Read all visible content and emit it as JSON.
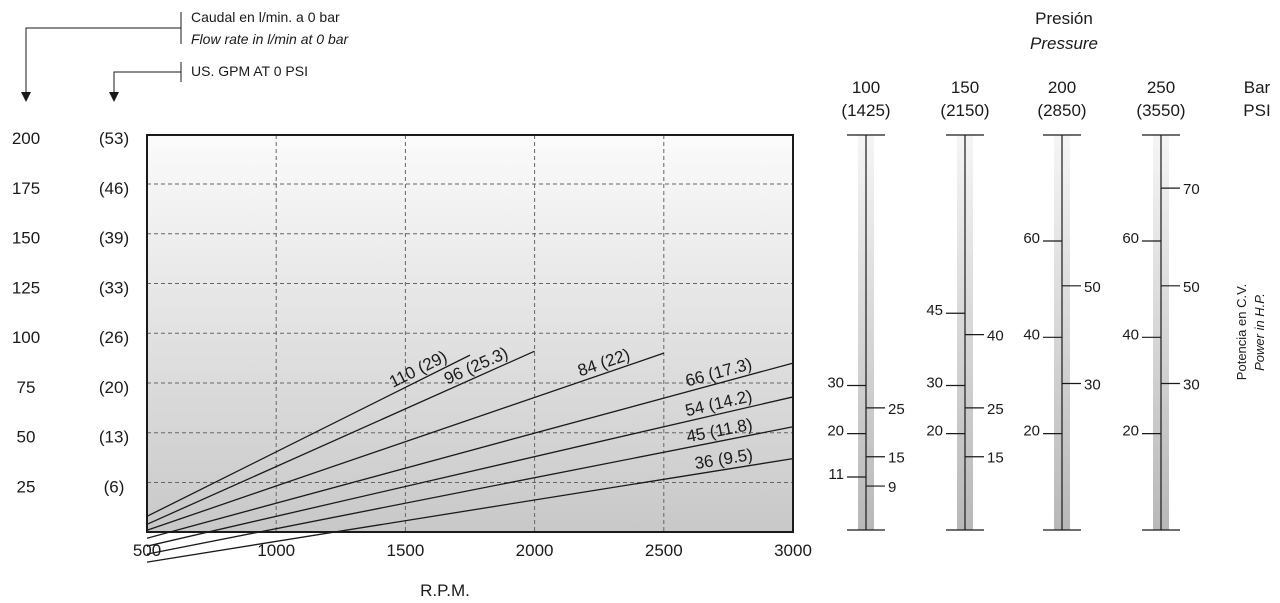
{
  "chart_data": {
    "type": "line",
    "xlabel": "R.P.M.",
    "x_ticks": [
      500,
      1000,
      1500,
      2000,
      2500,
      3000
    ],
    "xlim": [
      500,
      3000
    ],
    "ylim": [
      0,
      250
    ],
    "grid": true,
    "flow_header": {
      "line1": "Caudal en l/min. a 0 bar",
      "line2": "Flow rate in l/min at 0 bar",
      "gpm": "US. GPM AT 0 PSI"
    },
    "y_ticks": [
      {
        "lpm": 200,
        "lpm_label": "200",
        "gpm_label": "(53)"
      },
      {
        "lpm": 175,
        "lpm_label": "175",
        "gpm_label": "(46)"
      },
      {
        "lpm": 150,
        "lpm_label": "150",
        "gpm_label": "(39)"
      },
      {
        "lpm": 125,
        "lpm_label": "125",
        "gpm_label": "(33)"
      },
      {
        "lpm": 100,
        "lpm_label": "100",
        "gpm_label": "(26)"
      },
      {
        "lpm": 75,
        "lpm_label": "75",
        "gpm_label": "(20)"
      },
      {
        "lpm": 50,
        "lpm_label": "50",
        "gpm_label": "(13)"
      },
      {
        "lpm": 25,
        "lpm_label": "25",
        "gpm_label": "(6)"
      }
    ],
    "series": [
      {
        "name": "110 (29)",
        "x": [
          500,
          1750
        ],
        "y": [
          33,
          114
        ]
      },
      {
        "name": "96 (25.3)",
        "x": [
          500,
          2000
        ],
        "y": [
          29,
          116
        ]
      },
      {
        "name": "84 (22)",
        "x": [
          500,
          2500
        ],
        "y": [
          26,
          115
        ]
      },
      {
        "name": "66 (17.3)",
        "x": [
          500,
          3000
        ],
        "y": [
          22,
          110
        ]
      },
      {
        "name": "54 (14.2)",
        "x": [
          500,
          3000
        ],
        "y": [
          18,
          93
        ]
      },
      {
        "name": "45 (11.8)",
        "x": [
          500,
          3000
        ],
        "y": [
          14,
          78
        ]
      },
      {
        "name": "36 (9.5)",
        "x": [
          500,
          3000
        ],
        "y": [
          10,
          62
        ]
      }
    ],
    "pressure_header": {
      "line1": "Presión",
      "line2": "Pressure"
    },
    "unit_labels": {
      "bar": "Bar",
      "psi": "PSI"
    },
    "power_label": {
      "line1": "Potencia en C.V.",
      "line2": "Power in H.P."
    },
    "pressure_scales": [
      {
        "bar": "100",
        "psi": "(1425)",
        "cv_ticks": [
          {
            "v": 30,
            "label": "30"
          },
          {
            "v": 20,
            "label": "20"
          },
          {
            "v": 11,
            "label": "11"
          }
        ],
        "hp_ticks": [
          {
            "v": 25,
            "label": "25"
          },
          {
            "v": 15,
            "label": "15"
          },
          {
            "v": 9,
            "label": "9"
          }
        ]
      },
      {
        "bar": "150",
        "psi": "(2150)",
        "cv_ticks": [
          {
            "v": 45,
            "label": "45"
          },
          {
            "v": 30,
            "label": "30"
          },
          {
            "v": 20,
            "label": "20"
          }
        ],
        "hp_ticks": [
          {
            "v": 40,
            "label": "40"
          },
          {
            "v": 25,
            "label": "25"
          },
          {
            "v": 15,
            "label": "15"
          }
        ]
      },
      {
        "bar": "200",
        "psi": "(2850)",
        "cv_ticks": [
          {
            "v": 60,
            "label": "60"
          },
          {
            "v": 40,
            "label": "40"
          },
          {
            "v": 20,
            "label": "20"
          }
        ],
        "hp_ticks": [
          {
            "v": 50,
            "label": "50"
          },
          {
            "v": 30,
            "label": "30"
          }
        ]
      },
      {
        "bar": "250",
        "psi": "(3550)",
        "cv_ticks": [
          {
            "v": 60,
            "label": "60"
          },
          {
            "v": 40,
            "label": "40"
          },
          {
            "v": 20,
            "label": "20"
          }
        ],
        "hp_ticks": [
          {
            "v": 70,
            "label": "70"
          },
          {
            "v": 50,
            "label": "50"
          },
          {
            "v": 30,
            "label": "30"
          }
        ]
      }
    ]
  }
}
